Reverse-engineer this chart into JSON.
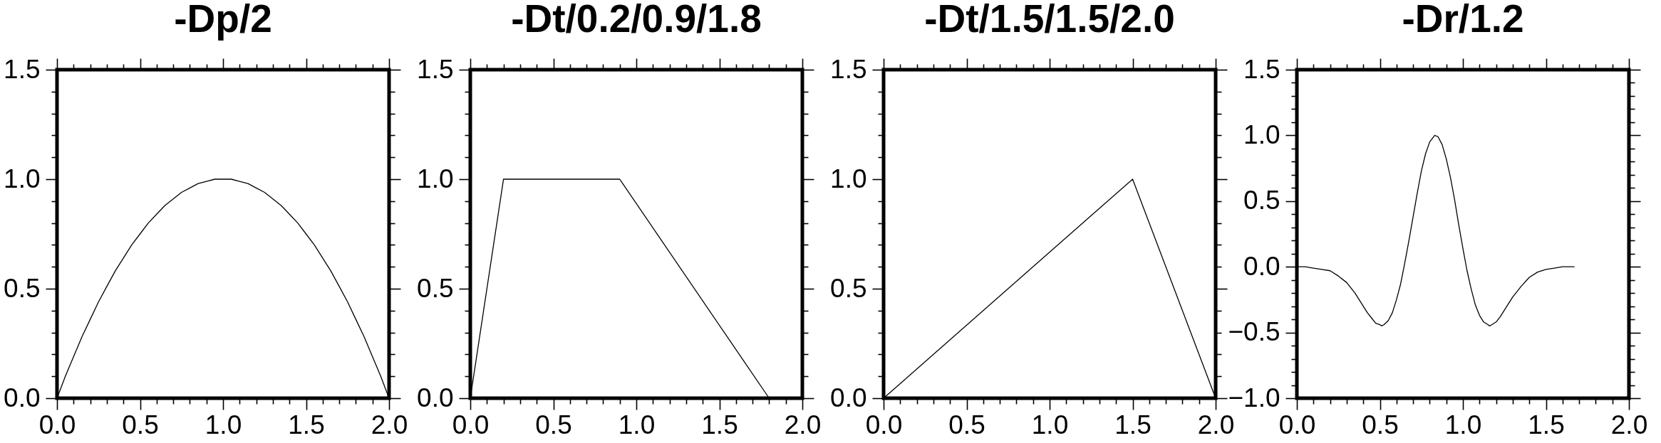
{
  "chart_data": [
    {
      "type": "line",
      "title": "-Dp/2",
      "color": "#000000",
      "x": [
        0,
        0.05,
        0.1,
        0.15,
        0.2,
        0.25,
        0.3,
        0.35,
        0.4,
        0.45,
        0.5,
        0.55,
        0.6,
        0.65,
        0.7,
        0.75,
        0.8,
        0.85,
        0.9,
        0.95,
        1,
        1.05,
        1.1,
        1.15,
        1.2,
        1.25,
        1.3,
        1.35,
        1.4,
        1.45,
        1.5,
        1.55,
        1.6,
        1.65,
        1.7,
        1.75,
        1.8,
        1.85,
        1.9,
        1.95,
        2
      ],
      "values": [
        0,
        0.1,
        0.19,
        0.28,
        0.36,
        0.44,
        0.51,
        0.58,
        0.64,
        0.7,
        0.75,
        0.8,
        0.84,
        0.88,
        0.91,
        0.94,
        0.96,
        0.98,
        0.99,
        1,
        1,
        1,
        0.99,
        0.98,
        0.96,
        0.94,
        0.91,
        0.88,
        0.84,
        0.8,
        0.75,
        0.7,
        0.64,
        0.58,
        0.51,
        0.44,
        0.36,
        0.28,
        0.19,
        0.1,
        0
      ],
      "xlim": [
        0,
        2
      ],
      "ylim": [
        0,
        1.5
      ],
      "xticks": [
        {
          "value": 0,
          "label": "0.0"
        },
        {
          "value": 0.1,
          "label": null
        },
        {
          "value": 0.2,
          "label": null
        },
        {
          "value": 0.3,
          "label": null
        },
        {
          "value": 0.4,
          "label": null
        },
        {
          "value": 0.5,
          "label": "0.5"
        },
        {
          "value": 0.6,
          "label": null
        },
        {
          "value": 0.7,
          "label": null
        },
        {
          "value": 0.8,
          "label": null
        },
        {
          "value": 0.9,
          "label": null
        },
        {
          "value": 1,
          "label": "1.0"
        },
        {
          "value": 1.1,
          "label": null
        },
        {
          "value": 1.2,
          "label": null
        },
        {
          "value": 1.3,
          "label": null
        },
        {
          "value": 1.4,
          "label": null
        },
        {
          "value": 1.5,
          "label": "1.5"
        },
        {
          "value": 1.6,
          "label": null
        },
        {
          "value": 1.7,
          "label": null
        },
        {
          "value": 1.8,
          "label": null
        },
        {
          "value": 1.9,
          "label": null
        },
        {
          "value": 2,
          "label": "2.0"
        }
      ],
      "yticks": [
        {
          "value": 0,
          "label": "0.0"
        },
        {
          "value": 0.1,
          "label": null
        },
        {
          "value": 0.2,
          "label": null
        },
        {
          "value": 0.3,
          "label": null
        },
        {
          "value": 0.4,
          "label": null
        },
        {
          "value": 0.5,
          "label": "0.5"
        },
        {
          "value": 0.6,
          "label": null
        },
        {
          "value": 0.7,
          "label": null
        },
        {
          "value": 0.8,
          "label": null
        },
        {
          "value": 0.9,
          "label": null
        },
        {
          "value": 1,
          "label": "1.0"
        },
        {
          "value": 1.1,
          "label": null
        },
        {
          "value": 1.2,
          "label": null
        },
        {
          "value": 1.3,
          "label": null
        },
        {
          "value": 1.4,
          "label": null
        },
        {
          "value": 1.5,
          "label": "1.5"
        }
      ]
    },
    {
      "type": "line",
      "title": "-Dt/0.2/0.9/1.8",
      "color": "#000000",
      "x": [
        0,
        0.2,
        0.9,
        1.8
      ],
      "values": [
        0,
        1,
        1,
        0
      ],
      "xlim": [
        0,
        2
      ],
      "ylim": [
        0,
        1.5
      ],
      "xticks": [
        {
          "value": 0,
          "label": "0.0"
        },
        {
          "value": 0.1,
          "label": null
        },
        {
          "value": 0.2,
          "label": null
        },
        {
          "value": 0.3,
          "label": null
        },
        {
          "value": 0.4,
          "label": null
        },
        {
          "value": 0.5,
          "label": "0.5"
        },
        {
          "value": 0.6,
          "label": null
        },
        {
          "value": 0.7,
          "label": null
        },
        {
          "value": 0.8,
          "label": null
        },
        {
          "value": 0.9,
          "label": null
        },
        {
          "value": 1,
          "label": "1.0"
        },
        {
          "value": 1.1,
          "label": null
        },
        {
          "value": 1.2,
          "label": null
        },
        {
          "value": 1.3,
          "label": null
        },
        {
          "value": 1.4,
          "label": null
        },
        {
          "value": 1.5,
          "label": "1.5"
        },
        {
          "value": 1.6,
          "label": null
        },
        {
          "value": 1.7,
          "label": null
        },
        {
          "value": 1.8,
          "label": null
        },
        {
          "value": 1.9,
          "label": null
        },
        {
          "value": 2,
          "label": "2.0"
        }
      ],
      "yticks": [
        {
          "value": 0,
          "label": "0.0"
        },
        {
          "value": 0.1,
          "label": null
        },
        {
          "value": 0.2,
          "label": null
        },
        {
          "value": 0.3,
          "label": null
        },
        {
          "value": 0.4,
          "label": null
        },
        {
          "value": 0.5,
          "label": "0.5"
        },
        {
          "value": 0.6,
          "label": null
        },
        {
          "value": 0.7,
          "label": null
        },
        {
          "value": 0.8,
          "label": null
        },
        {
          "value": 0.9,
          "label": null
        },
        {
          "value": 1,
          "label": "1.0"
        },
        {
          "value": 1.1,
          "label": null
        },
        {
          "value": 1.2,
          "label": null
        },
        {
          "value": 1.3,
          "label": null
        },
        {
          "value": 1.4,
          "label": null
        },
        {
          "value": 1.5,
          "label": "1.5"
        }
      ]
    },
    {
      "type": "line",
      "title": "-Dt/1.5/1.5/2.0",
      "color": "#000000",
      "x": [
        0,
        1.5,
        2
      ],
      "values": [
        0,
        1,
        0
      ],
      "xlim": [
        0,
        2
      ],
      "ylim": [
        0,
        1.5
      ],
      "xticks": [
        {
          "value": 0,
          "label": "0.0"
        },
        {
          "value": 0.1,
          "label": null
        },
        {
          "value": 0.2,
          "label": null
        },
        {
          "value": 0.3,
          "label": null
        },
        {
          "value": 0.4,
          "label": null
        },
        {
          "value": 0.5,
          "label": "0.5"
        },
        {
          "value": 0.6,
          "label": null
        },
        {
          "value": 0.7,
          "label": null
        },
        {
          "value": 0.8,
          "label": null
        },
        {
          "value": 0.9,
          "label": null
        },
        {
          "value": 1,
          "label": "1.0"
        },
        {
          "value": 1.1,
          "label": null
        },
        {
          "value": 1.2,
          "label": null
        },
        {
          "value": 1.3,
          "label": null
        },
        {
          "value": 1.4,
          "label": null
        },
        {
          "value": 1.5,
          "label": "1.5"
        },
        {
          "value": 1.6,
          "label": null
        },
        {
          "value": 1.7,
          "label": null
        },
        {
          "value": 1.8,
          "label": null
        },
        {
          "value": 1.9,
          "label": null
        },
        {
          "value": 2,
          "label": "2.0"
        }
      ],
      "yticks": [
        {
          "value": 0,
          "label": "0.0"
        },
        {
          "value": 0.1,
          "label": null
        },
        {
          "value": 0.2,
          "label": null
        },
        {
          "value": 0.3,
          "label": null
        },
        {
          "value": 0.4,
          "label": null
        },
        {
          "value": 0.5,
          "label": "0.5"
        },
        {
          "value": 0.6,
          "label": null
        },
        {
          "value": 0.7,
          "label": null
        },
        {
          "value": 0.8,
          "label": null
        },
        {
          "value": 0.9,
          "label": null
        },
        {
          "value": 1,
          "label": "1.0"
        },
        {
          "value": 1.1,
          "label": null
        },
        {
          "value": 1.2,
          "label": null
        },
        {
          "value": 1.3,
          "label": null
        },
        {
          "value": 1.4,
          "label": null
        },
        {
          "value": 1.5,
          "label": "1.5"
        }
      ]
    },
    {
      "type": "line",
      "title": "-Dr/1.2",
      "color": "#000000",
      "x": [
        0,
        0.05,
        0.1,
        0.15,
        0.2,
        0.25,
        0.3,
        0.35,
        0.375,
        0.4,
        0.425,
        0.45,
        0.475,
        0.5,
        0.51,
        0.525,
        0.55,
        0.575,
        0.6,
        0.625,
        0.65,
        0.675,
        0.7,
        0.725,
        0.75,
        0.775,
        0.8,
        0.83,
        0.85,
        0.875,
        0.9,
        0.925,
        0.95,
        0.975,
        1,
        1.025,
        1.05,
        1.075,
        1.1,
        1.125,
        1.15,
        1.16,
        1.175,
        1.2,
        1.225,
        1.25,
        1.275,
        1.3,
        1.325,
        1.35,
        1.4,
        1.45,
        1.5,
        1.55,
        1.6,
        1.67
      ],
      "values": [
        0,
        0,
        -0.01,
        -0.02,
        -0.03,
        -0.07,
        -0.12,
        -0.2,
        -0.25,
        -0.3,
        -0.35,
        -0.39,
        -0.43,
        -0.44,
        -0.45,
        -0.44,
        -0.41,
        -0.35,
        -0.25,
        -0.13,
        0.03,
        0.2,
        0.38,
        0.56,
        0.73,
        0.86,
        0.95,
        1,
        0.99,
        0.93,
        0.82,
        0.68,
        0.51,
        0.32,
        0.14,
        -0.03,
        -0.17,
        -0.29,
        -0.37,
        -0.42,
        -0.44,
        -0.45,
        -0.44,
        -0.42,
        -0.38,
        -0.33,
        -0.28,
        -0.23,
        -0.19,
        -0.15,
        -0.08,
        -0.04,
        -0.02,
        -0.01,
        0,
        0
      ],
      "xlim": [
        0,
        2
      ],
      "ylim": [
        -1,
        1.5
      ],
      "xticks": [
        {
          "value": 0,
          "label": "0.0"
        },
        {
          "value": 0.1,
          "label": null
        },
        {
          "value": 0.2,
          "label": null
        },
        {
          "value": 0.3,
          "label": null
        },
        {
          "value": 0.4,
          "label": null
        },
        {
          "value": 0.5,
          "label": "0.5"
        },
        {
          "value": 0.6,
          "label": null
        },
        {
          "value": 0.7,
          "label": null
        },
        {
          "value": 0.8,
          "label": null
        },
        {
          "value": 0.9,
          "label": null
        },
        {
          "value": 1,
          "label": "1.0"
        },
        {
          "value": 1.1,
          "label": null
        },
        {
          "value": 1.2,
          "label": null
        },
        {
          "value": 1.3,
          "label": null
        },
        {
          "value": 1.4,
          "label": null
        },
        {
          "value": 1.5,
          "label": "1.5"
        },
        {
          "value": 1.6,
          "label": null
        },
        {
          "value": 1.7,
          "label": null
        },
        {
          "value": 1.8,
          "label": null
        },
        {
          "value": 1.9,
          "label": null
        },
        {
          "value": 2,
          "label": "2.0"
        }
      ],
      "yticks": [
        {
          "value": -1,
          "label": "−1.0"
        },
        {
          "value": -0.9,
          "label": null
        },
        {
          "value": -0.8,
          "label": null
        },
        {
          "value": -0.7,
          "label": null
        },
        {
          "value": -0.6,
          "label": null
        },
        {
          "value": -0.5,
          "label": "−0.5"
        },
        {
          "value": -0.4,
          "label": null
        },
        {
          "value": -0.3,
          "label": null
        },
        {
          "value": -0.2,
          "label": null
        },
        {
          "value": -0.1,
          "label": null
        },
        {
          "value": 0,
          "label": "0.0"
        },
        {
          "value": 0.1,
          "label": null
        },
        {
          "value": 0.2,
          "label": null
        },
        {
          "value": 0.3,
          "label": null
        },
        {
          "value": 0.4,
          "label": null
        },
        {
          "value": 0.5,
          "label": "0.5"
        },
        {
          "value": 0.6,
          "label": null
        },
        {
          "value": 0.7,
          "label": null
        },
        {
          "value": 0.8,
          "label": null
        },
        {
          "value": 0.9,
          "label": null
        },
        {
          "value": 1,
          "label": "1.0"
        },
        {
          "value": 1.1,
          "label": null
        },
        {
          "value": 1.2,
          "label": null
        },
        {
          "value": 1.3,
          "label": null
        },
        {
          "value": 1.4,
          "label": null
        },
        {
          "value": 1.5,
          "label": "1.5"
        }
      ]
    }
  ]
}
